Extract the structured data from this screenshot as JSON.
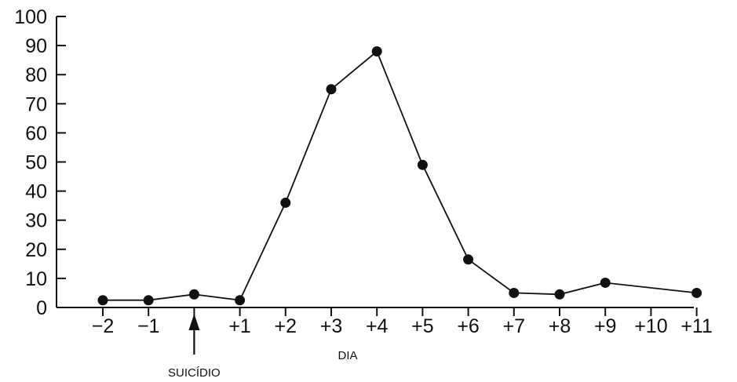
{
  "chart_data": {
    "type": "line",
    "title": "",
    "xlabel": "DIA",
    "ylabel": "",
    "x_ticks": [
      "−2",
      "−1",
      "0",
      "+1",
      "+2",
      "+3",
      "+4",
      "+5",
      "+6",
      "+7",
      "+8",
      "+9",
      "+10",
      "+11"
    ],
    "x_tick_labels_shown": [
      "−2",
      "−1",
      "",
      "+1",
      "+2",
      "+3",
      "+4",
      "+5",
      "+6",
      "+7",
      "+8",
      "+9",
      "+10",
      "+11"
    ],
    "y_ticks": [
      "0",
      "10",
      "20",
      "30",
      "40",
      "50",
      "60",
      "70",
      "80",
      "90",
      "100"
    ],
    "ylim": [
      0,
      100
    ],
    "xlim": [
      -2,
      11
    ],
    "grid": false,
    "series": [
      {
        "x": [
          -2,
          -1,
          0,
          1,
          2,
          3,
          4,
          5,
          6,
          7,
          8,
          9,
          11
        ],
        "y": [
          2.5,
          2.5,
          4.5,
          2.5,
          36,
          75,
          88,
          49,
          16.5,
          5,
          4.5,
          8.5,
          5
        ]
      }
    ],
    "annotation": {
      "text": "SUICÍDIO",
      "x": 0,
      "marker": "arrow-up"
    }
  }
}
